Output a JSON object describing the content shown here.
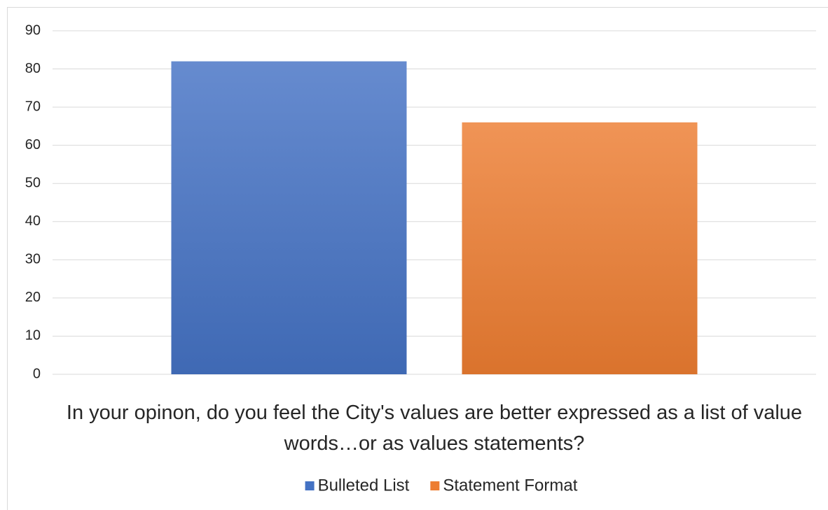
{
  "chart_data": {
    "type": "bar",
    "categories": [
      "In your opinon, do you feel the City's values are better expressed as a list of value words…or as values statements?"
    ],
    "series": [
      {
        "name": "Bulleted List",
        "color": "#4472c4",
        "values": [
          82
        ]
      },
      {
        "name": "Statement Format",
        "color": "#ed7d31",
        "values": [
          66
        ]
      }
    ],
    "ylim": [
      0,
      90
    ],
    "yticks": [
      0,
      10,
      20,
      30,
      40,
      50,
      60,
      70,
      80,
      90
    ],
    "grid": true,
    "legend": "bottom"
  }
}
